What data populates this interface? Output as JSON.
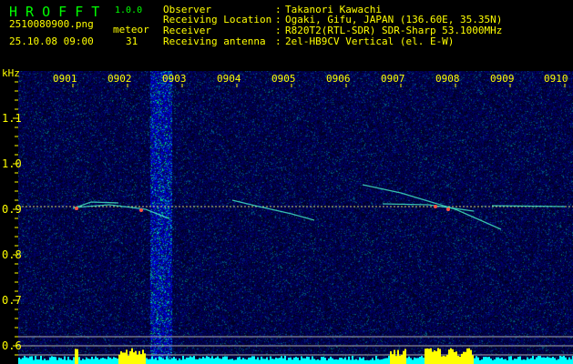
{
  "app": {
    "name": "H R O F F T",
    "version": "1.0.0"
  },
  "file": {
    "name": "2510080900.png",
    "datetime": "25.10.08 09:00"
  },
  "meteor": {
    "label": "meteor",
    "count": "31"
  },
  "info": [
    {
      "label": "Observer",
      "value": "Takanori Kawachi"
    },
    {
      "label": "Receiving Location",
      "value": "Ogaki, Gifu, JAPAN (136.60E, 35.35N)"
    },
    {
      "label": "Receiver",
      "value": "R820T2(RTL-SDR) SDR-Sharp 53.1000MHz"
    },
    {
      "label": "Receiving antenna",
      "value": "2el-HB9CV Vertical (el. E-W)"
    }
  ],
  "axis": {
    "y_unit": "kHz",
    "y_ticks": [
      "1.1",
      "1.0",
      "0.9",
      "0.8",
      "0.7",
      "0.6"
    ],
    "x_ticks": [
      "0901",
      "0902",
      "0903",
      "0904",
      "0905",
      "0906",
      "0907",
      "0908",
      "0909",
      "0910"
    ]
  },
  "colors": {
    "text": "#ffff00",
    "title": "#00ff00",
    "background": "#000010",
    "noise": "#0a1a9a",
    "histogram": "#00ffff",
    "histogram_peak": "#ffff00"
  }
}
